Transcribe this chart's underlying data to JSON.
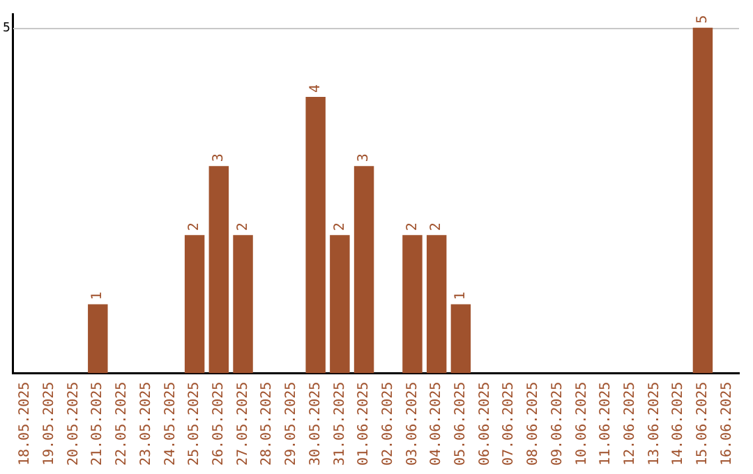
{
  "chart_data": {
    "type": "bar",
    "categories": [
      "18.05.2025",
      "19.05.2025",
      "20.05.2025",
      "21.05.2025",
      "22.05.2025",
      "23.05.2025",
      "24.05.2025",
      "25.05.2025",
      "26.05.2025",
      "27.05.2025",
      "28.05.2025",
      "29.05.2025",
      "30.05.2025",
      "31.05.2025",
      "01.06.2025",
      "02.06.2025",
      "03.06.2025",
      "04.06.2025",
      "05.06.2025",
      "06.06.2025",
      "07.06.2025",
      "08.06.2025",
      "09.06.2025",
      "10.06.2025",
      "11.06.2025",
      "12.06.2025",
      "13.06.2025",
      "14.06.2025",
      "15.06.2025",
      "16.06.2025"
    ],
    "values": [
      0,
      0,
      0,
      1,
      0,
      0,
      0,
      2,
      3,
      2,
      0,
      0,
      4,
      2,
      3,
      0,
      2,
      2,
      1,
      0,
      0,
      0,
      0,
      0,
      0,
      0,
      0,
      0,
      5,
      0
    ],
    "value_labels": [
      null,
      null,
      null,
      "1",
      null,
      null,
      null,
      "2",
      "3",
      "2",
      null,
      null,
      "4",
      "2",
      "3",
      null,
      "2",
      "2",
      "1",
      null,
      null,
      null,
      null,
      null,
      null,
      null,
      null,
      null,
      "5",
      null
    ],
    "color": "#a0522d",
    "ylim": [
      0,
      5.2
    ],
    "yticks": [
      5
    ],
    "grid": "y",
    "legend": false
  }
}
